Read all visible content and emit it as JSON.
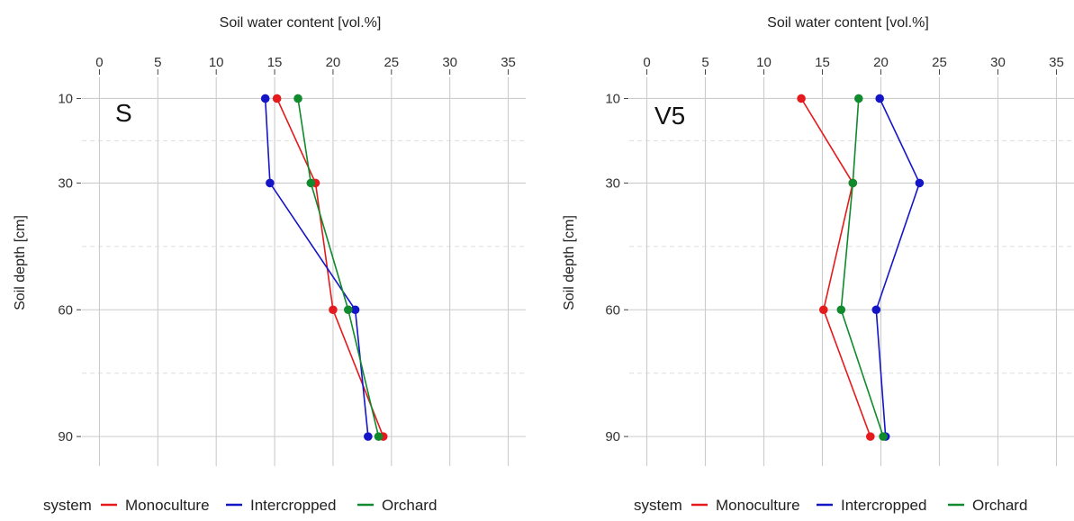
{
  "colors": {
    "Monoculture": "#e41a1c",
    "Intercropped": "#1515c8",
    "Orchard": "#0f8a2c",
    "major_grid": "#cccccc",
    "minor_grid": "#dddddd",
    "text": "#333333"
  },
  "legend": {
    "title": "system",
    "placement": "bottom",
    "items": [
      "Monoculture",
      "Intercropped",
      "Orchard"
    ]
  },
  "chart_data": [
    {
      "type": "line",
      "panel_label": "S",
      "xlabel": "Soil water content [vol.%]",
      "ylabel": "Soil depth [cm]",
      "x_axis_position": "top",
      "xlim": [
        -1.5,
        36.5
      ],
      "ylim": [
        5,
        97
      ],
      "y_reversed": true,
      "x_ticks": [
        0,
        5,
        10,
        15,
        20,
        25,
        30,
        35
      ],
      "y_ticks": [
        10,
        30,
        60,
        90
      ],
      "y_minor_dashed": [
        20,
        45,
        75
      ],
      "grid": true,
      "series": [
        {
          "name": "Monoculture",
          "points": [
            {
              "x": 15.2,
              "y": 10
            },
            {
              "x": 18.5,
              "y": 30
            },
            {
              "x": 20.0,
              "y": 60
            },
            {
              "x": 24.3,
              "y": 90
            }
          ]
        },
        {
          "name": "Intercropped",
          "points": [
            {
              "x": 14.2,
              "y": 10
            },
            {
              "x": 14.6,
              "y": 30
            },
            {
              "x": 21.9,
              "y": 60
            },
            {
              "x": 23.0,
              "y": 90
            }
          ]
        },
        {
          "name": "Orchard",
          "points": [
            {
              "x": 17.0,
              "y": 10
            },
            {
              "x": 18.1,
              "y": 30
            },
            {
              "x": 21.3,
              "y": 60
            },
            {
              "x": 23.9,
              "y": 90
            }
          ]
        }
      ]
    },
    {
      "type": "line",
      "panel_label": "V5",
      "xlabel": "Soil water content [vol.%]",
      "ylabel": "Soil depth [cm]",
      "x_axis_position": "top",
      "xlim": [
        -1.5,
        36.5
      ],
      "ylim": [
        5,
        97
      ],
      "y_reversed": true,
      "x_ticks": [
        0,
        5,
        10,
        15,
        20,
        25,
        30,
        35
      ],
      "y_ticks": [
        10,
        30,
        60,
        90
      ],
      "y_minor_dashed": [
        20,
        45,
        75
      ],
      "grid": true,
      "series": [
        {
          "name": "Monoculture",
          "points": [
            {
              "x": 13.2,
              "y": 10
            },
            {
              "x": 17.6,
              "y": 30
            },
            {
              "x": 15.1,
              "y": 60
            },
            {
              "x": 19.1,
              "y": 90
            }
          ]
        },
        {
          "name": "Intercropped",
          "points": [
            {
              "x": 19.9,
              "y": 10
            },
            {
              "x": 23.3,
              "y": 30
            },
            {
              "x": 19.6,
              "y": 60
            },
            {
              "x": 20.4,
              "y": 90
            }
          ]
        },
        {
          "name": "Orchard",
          "points": [
            {
              "x": 18.1,
              "y": 10
            },
            {
              "x": 17.6,
              "y": 30
            },
            {
              "x": 16.6,
              "y": 60
            },
            {
              "x": 20.2,
              "y": 90
            }
          ]
        }
      ]
    }
  ]
}
